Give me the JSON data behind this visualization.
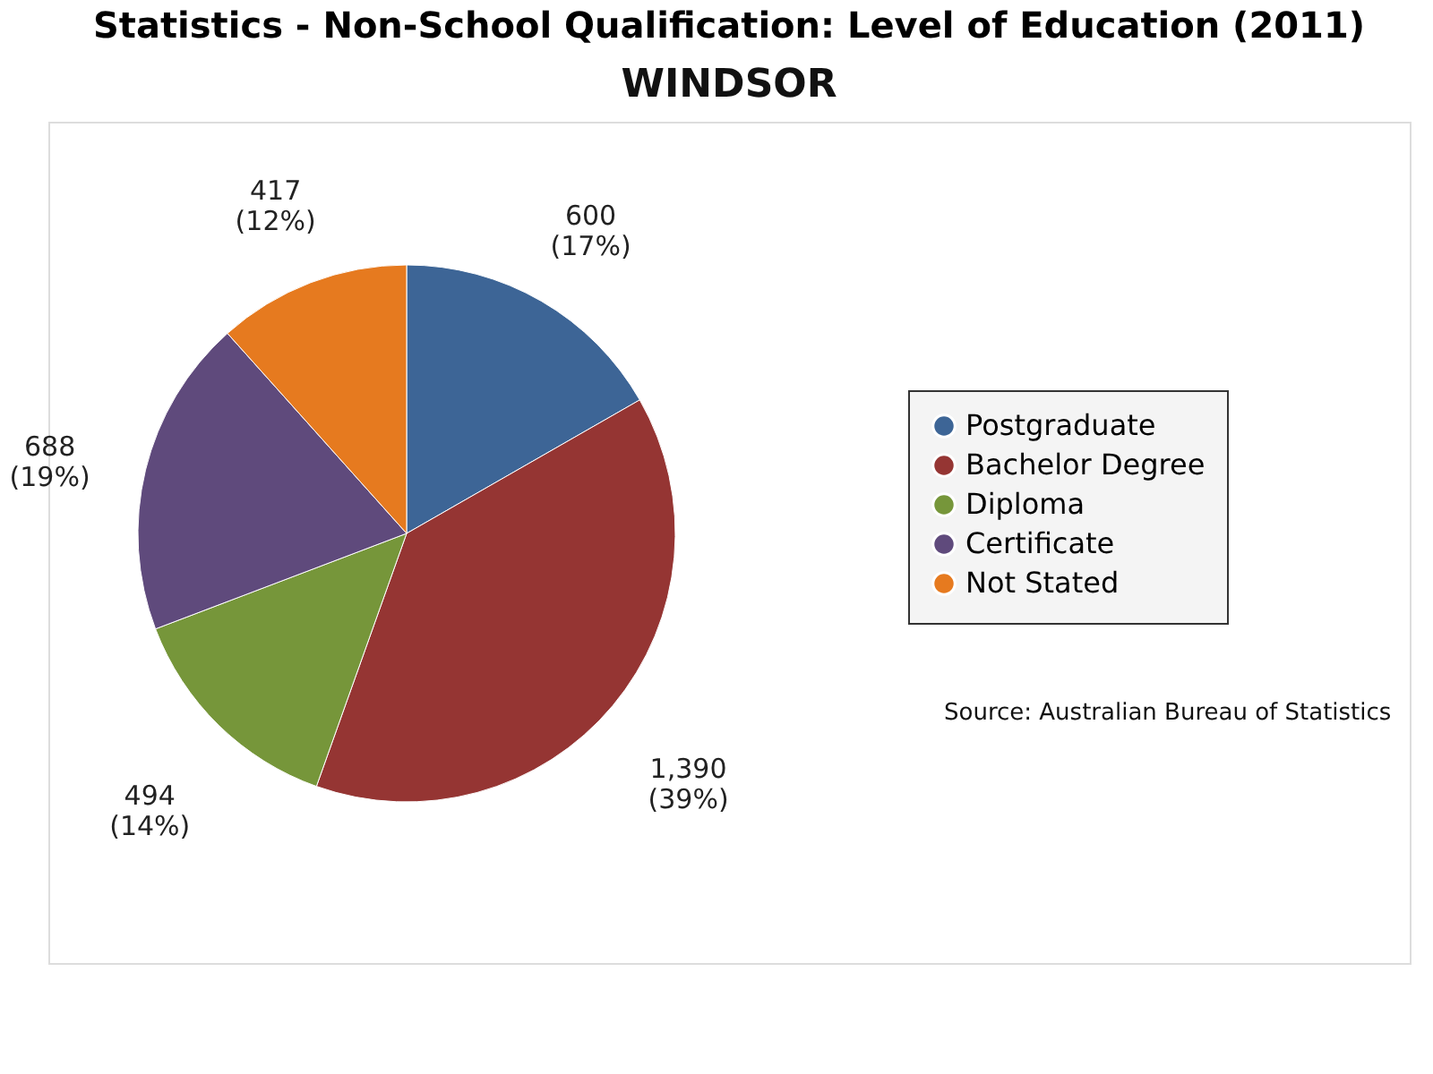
{
  "chart_data": {
    "type": "pie",
    "title": "Statistics - Non-School Qualification: Level of Education (2011)",
    "subtitle": "WINDSOR",
    "categories": [
      "Postgraduate",
      "Bachelor Degree",
      "Diploma",
      "Certificate",
      "Not Stated"
    ],
    "values": [
      600,
      1390,
      494,
      688,
      417
    ],
    "colors": [
      "#3d6596",
      "#953533",
      "#76963a",
      "#5f4a7c",
      "#e67a1f"
    ],
    "value_labels": [
      "600\n(17%)",
      "1,390\n(39%)",
      "494\n(14%)",
      "688\n(19%)",
      "417\n(12%)"
    ],
    "legend": "right",
    "annotations": [
      "Source: Australian Bureau of Statistics"
    ]
  }
}
